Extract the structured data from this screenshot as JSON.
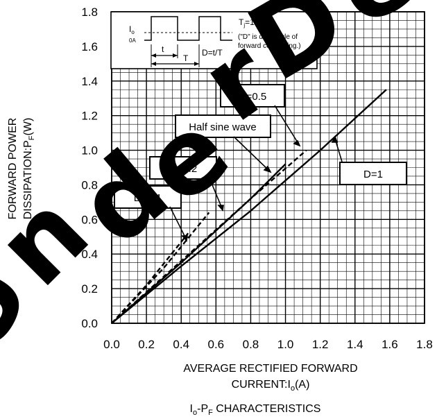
{
  "chart_data": {
    "type": "line",
    "title": "Iₒ-PF CHARACTERISTICS",
    "title_parts": {
      "a": "I",
      "a_sub": "o",
      "b": "-P",
      "b_sub": "F",
      "c": " CHARACTERISTICS"
    },
    "xlabel_line1": "AVERAGE RECTIFIED FORWARD",
    "xlabel_line2_parts": {
      "a": "CURRENT:I",
      "sub": "o",
      "b": "(A)"
    },
    "ylabel_line1": "FORWARD POWER",
    "ylabel_line2_parts": {
      "a": "DISSIPATION:P",
      "sub": "F",
      "b": "(W)"
    },
    "xlim": [
      0.0,
      1.8
    ],
    "ylim": [
      0.0,
      1.8
    ],
    "x_ticks": [
      "0.0",
      "0.2",
      "0.4",
      "0.6",
      "0.8",
      "1.0",
      "1.2",
      "1.4",
      "1.6",
      "1.8"
    ],
    "y_ticks": [
      "0.0",
      "0.2",
      "0.4",
      "0.6",
      "0.8",
      "1.0",
      "1.2",
      "1.4",
      "1.6",
      "1.8"
    ],
    "grid": true,
    "series": [
      {
        "name": "D=1",
        "style": "solid",
        "x": [
          0.0,
          0.4,
          0.8,
          1.2,
          1.58
        ],
        "y": [
          0.0,
          0.33,
          0.65,
          1.0,
          1.35
        ]
      },
      {
        "name": "Half sine wave",
        "style": "solid",
        "x": [
          0.0,
          0.4,
          0.8,
          1.0
        ],
        "y": [
          0.0,
          0.35,
          0.72,
          0.92
        ]
      },
      {
        "name": "D=0.5",
        "style": "dashed",
        "x": [
          0.0,
          0.4,
          0.8,
          1.12
        ],
        "y": [
          0.0,
          0.36,
          0.72,
          1.0
        ]
      },
      {
        "name": "D=0.2",
        "style": "dashed",
        "x": [
          0.0,
          0.3,
          0.56
        ],
        "y": [
          0.0,
          0.32,
          0.64
        ]
      },
      {
        "name": "D=0.1",
        "style": "dashed",
        "x": [
          0.0,
          0.2,
          0.44
        ],
        "y": [
          0.0,
          0.22,
          0.52
        ]
      }
    ],
    "labels": {
      "d1": "D=1",
      "d05": "D=0.5",
      "half_sine": "Half sine wave",
      "d02": "D=0.2",
      "d01": "D=0.1"
    },
    "inset": {
      "io": "I",
      "io_sub": "o",
      "zero": "0A",
      "t_small": "t",
      "t_big": "T",
      "duty": "D=t/T",
      "tj": "T",
      "tj_sub": "j",
      "tj_val": "=175ºC",
      "note_line1": "(\"D\" is duty cycle of",
      "note_line2": "forward conducting.)"
    }
  },
  "watermark": {
    "text": "Under De",
    "color": "#000000"
  }
}
